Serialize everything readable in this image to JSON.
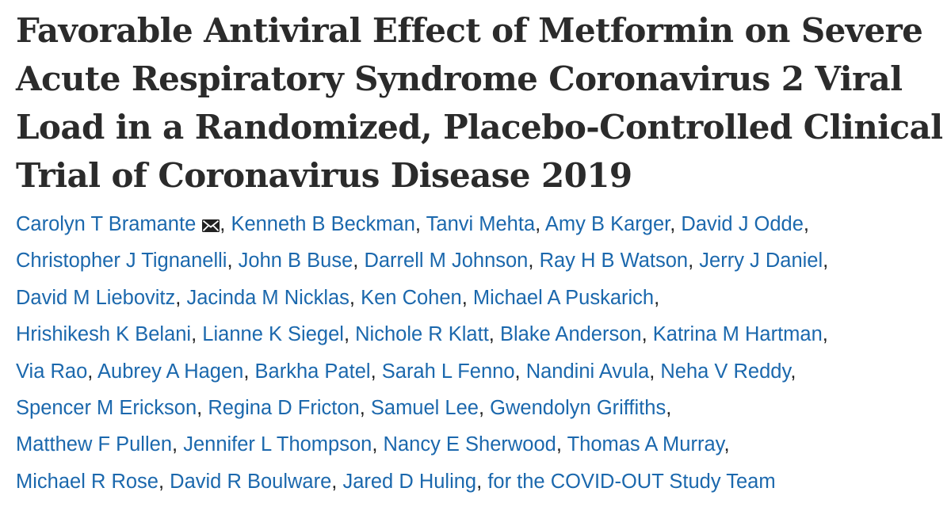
{
  "article": {
    "title_lines": [
      "Favorable Antiviral Effect of Metformin on Severe",
      "Acute Respiratory Syndrome Coronavirus 2 Viral",
      "Load in a Randomized, Placebo-Controlled Clinical",
      "Trial of Coronavirus Disease 2019"
    ],
    "separator": ",",
    "author_lines": [
      [
        "Carolyn T Bramante",
        "Kenneth B Beckman",
        "Tanvi Mehta",
        "Amy B Karger",
        "David J Odde"
      ],
      [
        "Christopher J Tignanelli",
        "John B Buse",
        "Darrell M Johnson",
        "Ray H B Watson",
        "Jerry J Daniel"
      ],
      [
        "David M Liebovitz",
        "Jacinda M Nicklas",
        "Ken Cohen",
        "Michael A Puskarich"
      ],
      [
        "Hrishikesh K Belani",
        "Lianne K Siegel",
        "Nichole R Klatt",
        "Blake Anderson",
        "Katrina M Hartman"
      ],
      [
        "Via Rao",
        "Aubrey A Hagen",
        "Barkha Patel",
        "Sarah L Fenno",
        "Nandini Avula",
        "Neha V Reddy"
      ],
      [
        "Spencer M Erickson",
        "Regina D Fricton",
        "Samuel Lee",
        "Gwendolyn Griffiths"
      ],
      [
        "Matthew F Pullen",
        "Jennifer L Thompson",
        "Nancy E Sherwood",
        "Thomas A Murray"
      ],
      [
        "Michael R Rose",
        "David R Boulware",
        "Jared D Huling",
        "for the COVID-OUT Study Team"
      ]
    ],
    "corresponding_icon": "envelope-icon",
    "colors": {
      "title": "#2b2b2b",
      "author_link": "#1b68ad",
      "separator": "#222222"
    }
  }
}
